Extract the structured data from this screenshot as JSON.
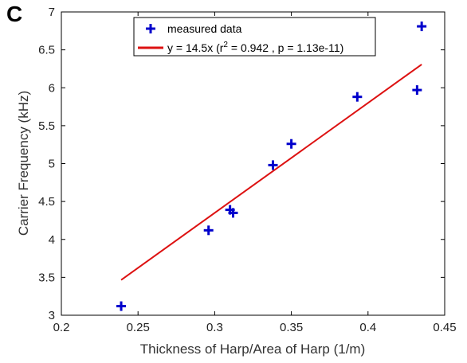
{
  "panel_label": "C",
  "chart_data": {
    "type": "scatter",
    "title": "",
    "xlabel": "Thickness of Harp/Area of Harp (1/m)",
    "ylabel": "Carrier Frequency (kHz)",
    "xlim": [
      0.2,
      0.45
    ],
    "ylim": [
      3,
      7
    ],
    "xticks": [
      "0.2",
      "0.25",
      "0.3",
      "0.35",
      "0.4",
      "0.45"
    ],
    "yticks": [
      "3",
      "3.5",
      "4",
      "4.5",
      "5",
      "5.5",
      "6",
      "6.5",
      "7"
    ],
    "grid": false,
    "legend_position": "top",
    "series": [
      {
        "name": "measured data",
        "marker": "+",
        "color": "#0000cc",
        "points": [
          {
            "x": 0.239,
            "y": 3.12
          },
          {
            "x": 0.296,
            "y": 4.12
          },
          {
            "x": 0.31,
            "y": 4.39
          },
          {
            "x": 0.312,
            "y": 4.35
          },
          {
            "x": 0.338,
            "y": 4.98
          },
          {
            "x": 0.35,
            "y": 5.26
          },
          {
            "x": 0.393,
            "y": 5.88
          },
          {
            "x": 0.432,
            "y": 5.97
          },
          {
            "x": 0.435,
            "y": 6.81
          }
        ]
      },
      {
        "name_parts": {
          "before": "y = 14.5x (r",
          "sup": "2",
          "after": " = 0.942 , p = 1.13e-11)"
        },
        "type": "line",
        "color": "#dd1111",
        "slope": 14.5,
        "x_range": [
          0.239,
          0.435
        ]
      }
    ]
  }
}
